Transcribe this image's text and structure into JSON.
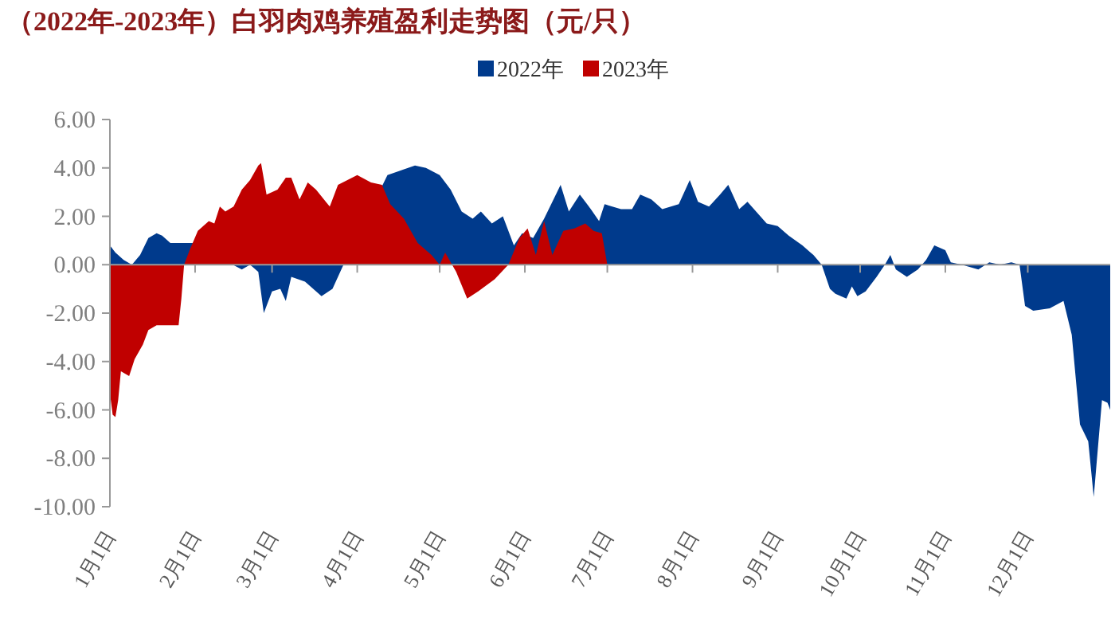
{
  "chart_data": {
    "type": "area",
    "title": "（2022年-2023年）白羽肉鸡养殖盈利走势图（元/只）",
    "legend": "top right",
    "xlim": [
      "--01-01",
      "--12-31"
    ],
    "xticks": [
      {
        "value": "--01-01",
        "label": "1月1日"
      },
      {
        "value": "--02-01",
        "label": "2月1日"
      },
      {
        "value": "--03-01",
        "label": "3月1日"
      },
      {
        "value": "--04-01",
        "label": "4月1日"
      },
      {
        "value": "--05-01",
        "label": "5月1日"
      },
      {
        "value": "--06-01",
        "label": "6月1日"
      },
      {
        "value": "--07-01",
        "label": "7月1日"
      },
      {
        "value": "--08-01",
        "label": "8月1日"
      },
      {
        "value": "--09-01",
        "label": "9月1日"
      },
      {
        "value": "--10-01",
        "label": "10月1日"
      },
      {
        "value": "--11-01",
        "label": "11月1日"
      },
      {
        "value": "--12-01",
        "label": "12月1日"
      }
    ],
    "ylim": [
      -10,
      6
    ],
    "yticks": [
      {
        "value": -10,
        "label": "-10.00"
      },
      {
        "value": -8,
        "label": "-8.00"
      },
      {
        "value": -6,
        "label": "-6.00"
      },
      {
        "value": -4,
        "label": "-4.00"
      },
      {
        "value": -2,
        "label": "-2.00"
      },
      {
        "value": 0,
        "label": "0.00"
      },
      {
        "value": 2,
        "label": "2.00"
      },
      {
        "value": 4,
        "label": "4.00"
      },
      {
        "value": 6,
        "label": "6.00"
      }
    ],
    "series": [
      {
        "name": "2022年",
        "color": "#003a8c",
        "x": [
          "--01-01",
          "--01-03",
          "--01-06",
          "--01-09",
          "--01-12",
          "--01-15",
          "--01-18",
          "--01-20",
          "--01-23",
          "--01-31",
          "--02-18",
          "--02-21",
          "--02-24",
          "--02-26",
          "--03-01",
          "--03-04",
          "--03-06",
          "--03-08",
          "--03-13",
          "--03-19",
          "--03-23",
          "--03-27",
          "--04-12",
          "--04-17",
          "--04-22",
          "--04-26",
          "--05-01",
          "--05-05",
          "--05-09",
          "--05-13",
          "--05-16",
          "--05-20",
          "--05-24",
          "--05-28",
          "--05-31",
          "--06-04",
          "--06-08",
          "--06-11",
          "--06-14",
          "--06-17",
          "--06-21",
          "--06-25",
          "--06-28",
          "--06-30",
          "--07-06",
          "--07-10",
          "--07-13",
          "--07-17",
          "--07-21",
          "--07-27",
          "--07-31",
          "--08-03",
          "--08-07",
          "--08-11",
          "--08-14",
          "--08-18",
          "--08-21",
          "--08-28",
          "--09-01",
          "--09-05",
          "--09-10",
          "--09-14",
          "--09-17",
          "--09-20",
          "--09-22",
          "--09-26",
          "--09-28",
          "--09-30",
          "--10-03",
          "--10-07",
          "--10-10",
          "--10-12",
          "--10-14",
          "--10-18",
          "--10-22",
          "--10-25",
          "--10-28",
          "--11-01",
          "--11-03",
          "--11-07",
          "--11-13",
          "--11-17",
          "--11-21",
          "--11-25",
          "--11-28",
          "--11-30",
          "--12-03",
          "--12-09",
          "--12-14",
          "--12-17",
          "--12-20",
          "--12-23",
          "--12-25",
          "--12-28",
          "--12-30",
          "--12-31"
        ],
        "values": [
          0.8,
          0.5,
          0.2,
          0,
          0.4,
          1.1,
          1.3,
          1.2,
          0.9,
          0.9,
          -0.2,
          0,
          -0.3,
          -2.0,
          -1.1,
          -1.0,
          -1.5,
          -0.5,
          -0.7,
          -1.3,
          -1.0,
          0,
          3.7,
          3.9,
          4.1,
          4.0,
          3.7,
          3.1,
          2.2,
          1.9,
          2.2,
          1.7,
          2.0,
          0.8,
          1.3,
          1.1,
          1.9,
          2.6,
          3.3,
          2.2,
          2.9,
          2.3,
          1.8,
          2.5,
          2.3,
          2.3,
          2.9,
          2.7,
          2.3,
          2.5,
          3.5,
          2.6,
          2.4,
          2.9,
          3.3,
          2.3,
          2.6,
          1.7,
          1.6,
          1.2,
          0.8,
          0.4,
          0,
          -1.0,
          -1.2,
          -1.4,
          -0.9,
          -1.3,
          -1.1,
          -0.5,
          0,
          0.4,
          -0.2,
          -0.5,
          -0.2,
          0.2,
          0.8,
          0.6,
          0.1,
          0,
          -0.2,
          0.1,
          0,
          0.1,
          0,
          -1.7,
          -1.9,
          -1.8,
          -1.5,
          -2.9,
          -6.6,
          -7.3,
          -9.6,
          -5.6,
          -5.7,
          -6.0
        ]
      },
      {
        "name": "2023年",
        "color": "#c00000",
        "x": [
          "--01-01",
          "--01-02",
          "--01-03",
          "--01-04",
          "--01-05",
          "--01-08",
          "--01-10",
          "--01-13",
          "--01-15",
          "--01-18",
          "--01-26",
          "--01-27",
          "--01-28",
          "--01-30",
          "--02-02",
          "--02-06",
          "--02-08",
          "--02-10",
          "--02-12",
          "--02-15",
          "--02-18",
          "--02-21",
          "--02-24",
          "--02-25",
          "--02-27",
          "--03-03",
          "--03-06",
          "--03-08",
          "--03-11",
          "--03-14",
          "--03-17",
          "--03-22",
          "--03-25",
          "--04-01",
          "--04-06",
          "--04-10",
          "--04-13",
          "--04-18",
          "--04-23",
          "--04-28",
          "--05-01",
          "--05-03",
          "--05-07",
          "--05-11",
          "--05-15",
          "--05-21",
          "--05-26",
          "--05-30",
          "--06-02",
          "--06-05",
          "--06-08",
          "--06-11",
          "--06-15",
          "--06-19",
          "--06-23",
          "--06-26",
          "--06-29",
          "--07-01"
        ],
        "values": [
          -5.3,
          -6.2,
          -6.3,
          -5.6,
          -4.4,
          -4.6,
          -3.9,
          -3.3,
          -2.7,
          -2.5,
          -2.5,
          -1.4,
          0,
          0.6,
          1.4,
          1.8,
          1.7,
          2.4,
          2.2,
          2.4,
          3.1,
          3.5,
          4.1,
          4.2,
          2.9,
          3.1,
          3.6,
          3.6,
          2.7,
          3.4,
          3.1,
          2.4,
          3.3,
          3.7,
          3.4,
          3.3,
          2.5,
          1.9,
          0.9,
          0.4,
          0,
          0.5,
          -0.3,
          -1.4,
          -1.1,
          -0.6,
          0,
          1.1,
          1.5,
          0.4,
          1.8,
          0.4,
          1.4,
          1.5,
          1.7,
          1.4,
          1.3,
          0
        ]
      }
    ]
  }
}
